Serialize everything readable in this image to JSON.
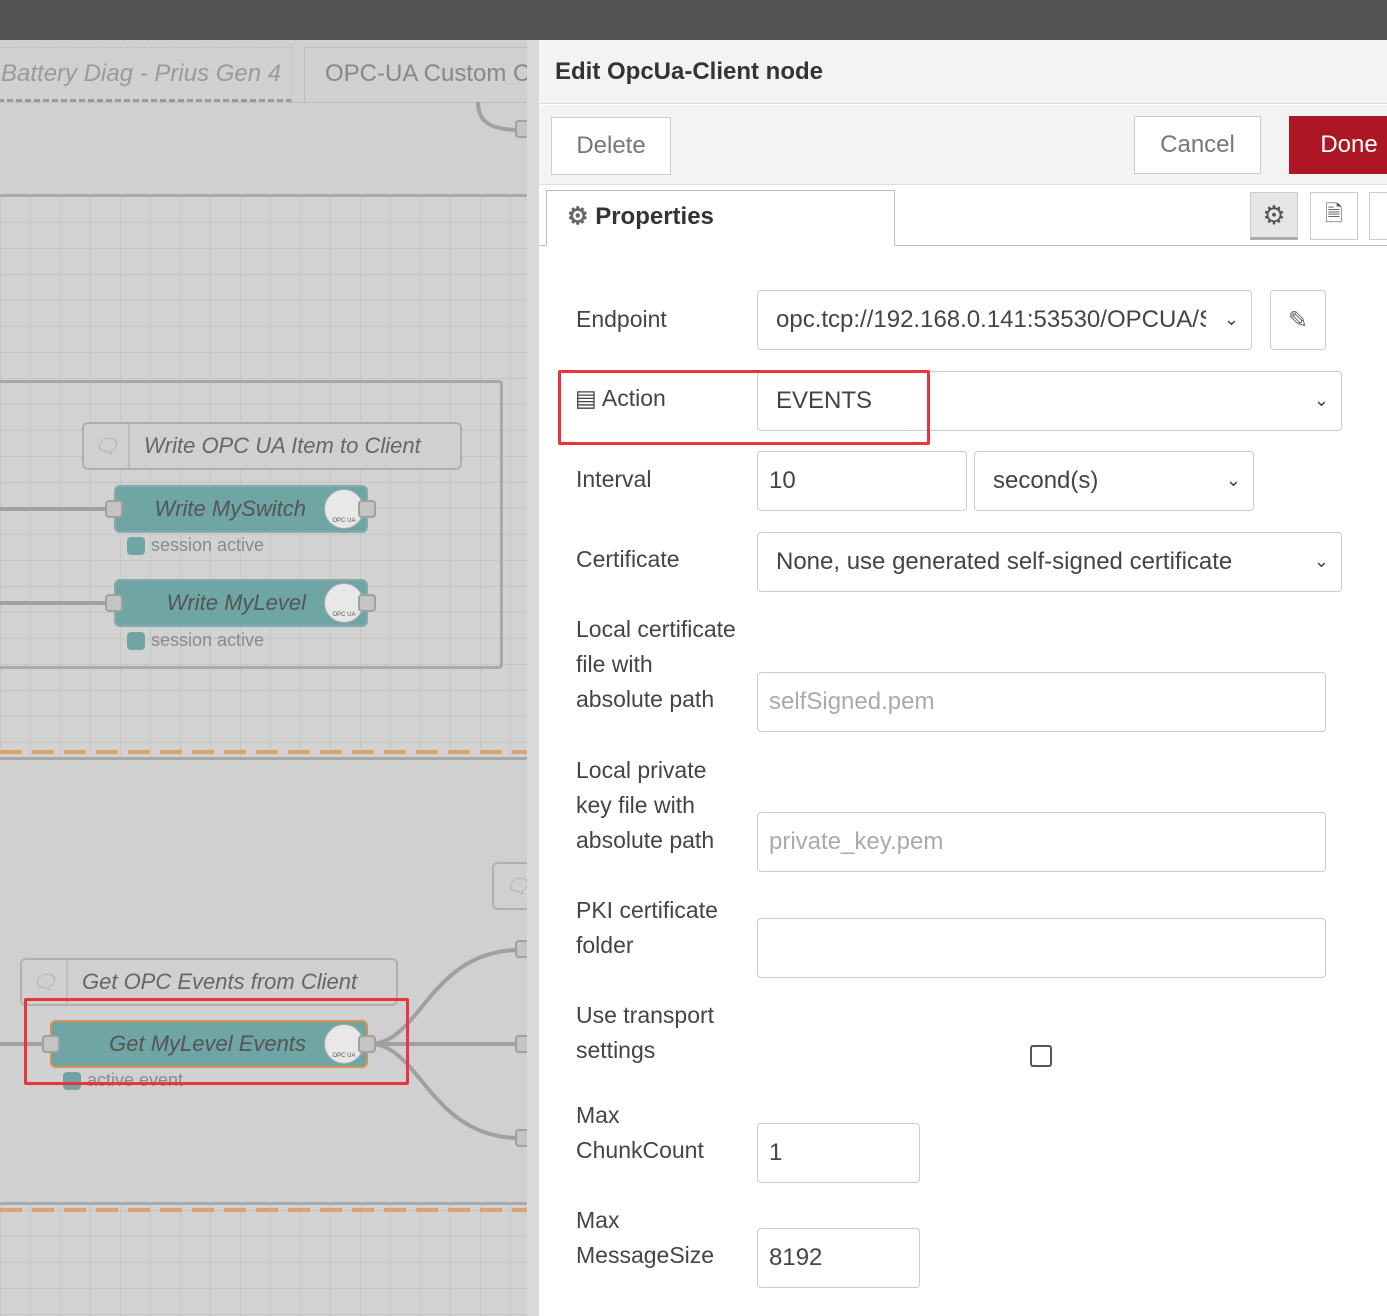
{
  "flow_tabs": [
    "Battery Diag - Prius Gen 4",
    "OPC-UA Custom C"
  ],
  "canvas": {
    "comments": [
      "Write OPC UA Item to Client",
      "Get OPC Events from Client"
    ],
    "nodes": [
      {
        "label": "Write MySwitch",
        "status": "session active"
      },
      {
        "label": "Write MyLevel",
        "status": "session active"
      },
      {
        "label": "Get MyLevel Events",
        "status": "active event"
      }
    ],
    "node_icon_text": "OPC UA",
    "node_color": "#6fa5a5",
    "highlight_color": "#e8343a"
  },
  "panel": {
    "title": "Edit OpcUa-Client node",
    "delete": "Delete",
    "cancel": "Cancel",
    "done": "Done",
    "done_color": "#ad1625",
    "tab": "Properties",
    "form": {
      "endpoint_label": "Endpoint",
      "endpoint_value": "opc.tcp://192.168.0.141:53530/OPCUA/S",
      "action_label": "Action",
      "action_value": "EVENTS",
      "interval_label": "Interval",
      "interval_value": "10",
      "interval_unit": "second(s)",
      "certificate_label": "Certificate",
      "certificate_value": "None, use generated self-signed certificate",
      "local_cert_label": [
        "Local certificate",
        "file with",
        "absolute path"
      ],
      "local_cert_placeholder": "selfSigned.pem",
      "private_key_label": [
        "Local private",
        "key file with",
        "absolute path"
      ],
      "private_key_placeholder": "private_key.pem",
      "pki_label": [
        "PKI certificate",
        "folder"
      ],
      "pki_value": "",
      "transport_label": [
        "Use transport",
        "settings"
      ],
      "transport_checked": false,
      "chunk_label": [
        "Max",
        "ChunkCount"
      ],
      "chunk_value": "1",
      "msgsize_label": [
        "Max",
        "MessageSize"
      ],
      "msgsize_value": "8192"
    }
  }
}
